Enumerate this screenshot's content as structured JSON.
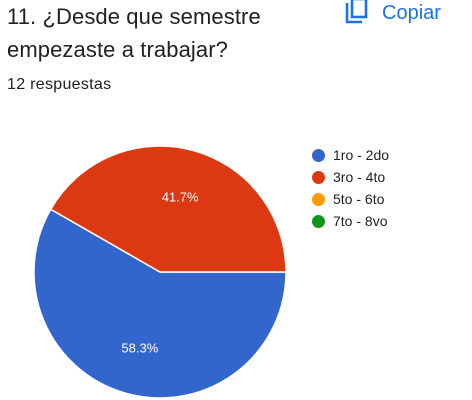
{
  "question": {
    "title": "11. ¿Desde que semestre empezaste a trabajar?",
    "responses": "12 respuestas"
  },
  "copy_button": {
    "label": "Copiar",
    "icon": "copy-icon",
    "color": "#1a73e8"
  },
  "chart_data": {
    "type": "pie",
    "categories": [
      "1ro - 2do",
      "3ro - 4to",
      "5to - 6to",
      "7to - 8vo"
    ],
    "values": [
      58.3,
      41.7,
      0,
      0
    ],
    "labels": [
      "58.3%",
      "41.7%",
      "",
      ""
    ],
    "colors": [
      "#3366cc",
      "#dc3912",
      "#ff9900",
      "#109618"
    ],
    "legend_position": "right"
  }
}
